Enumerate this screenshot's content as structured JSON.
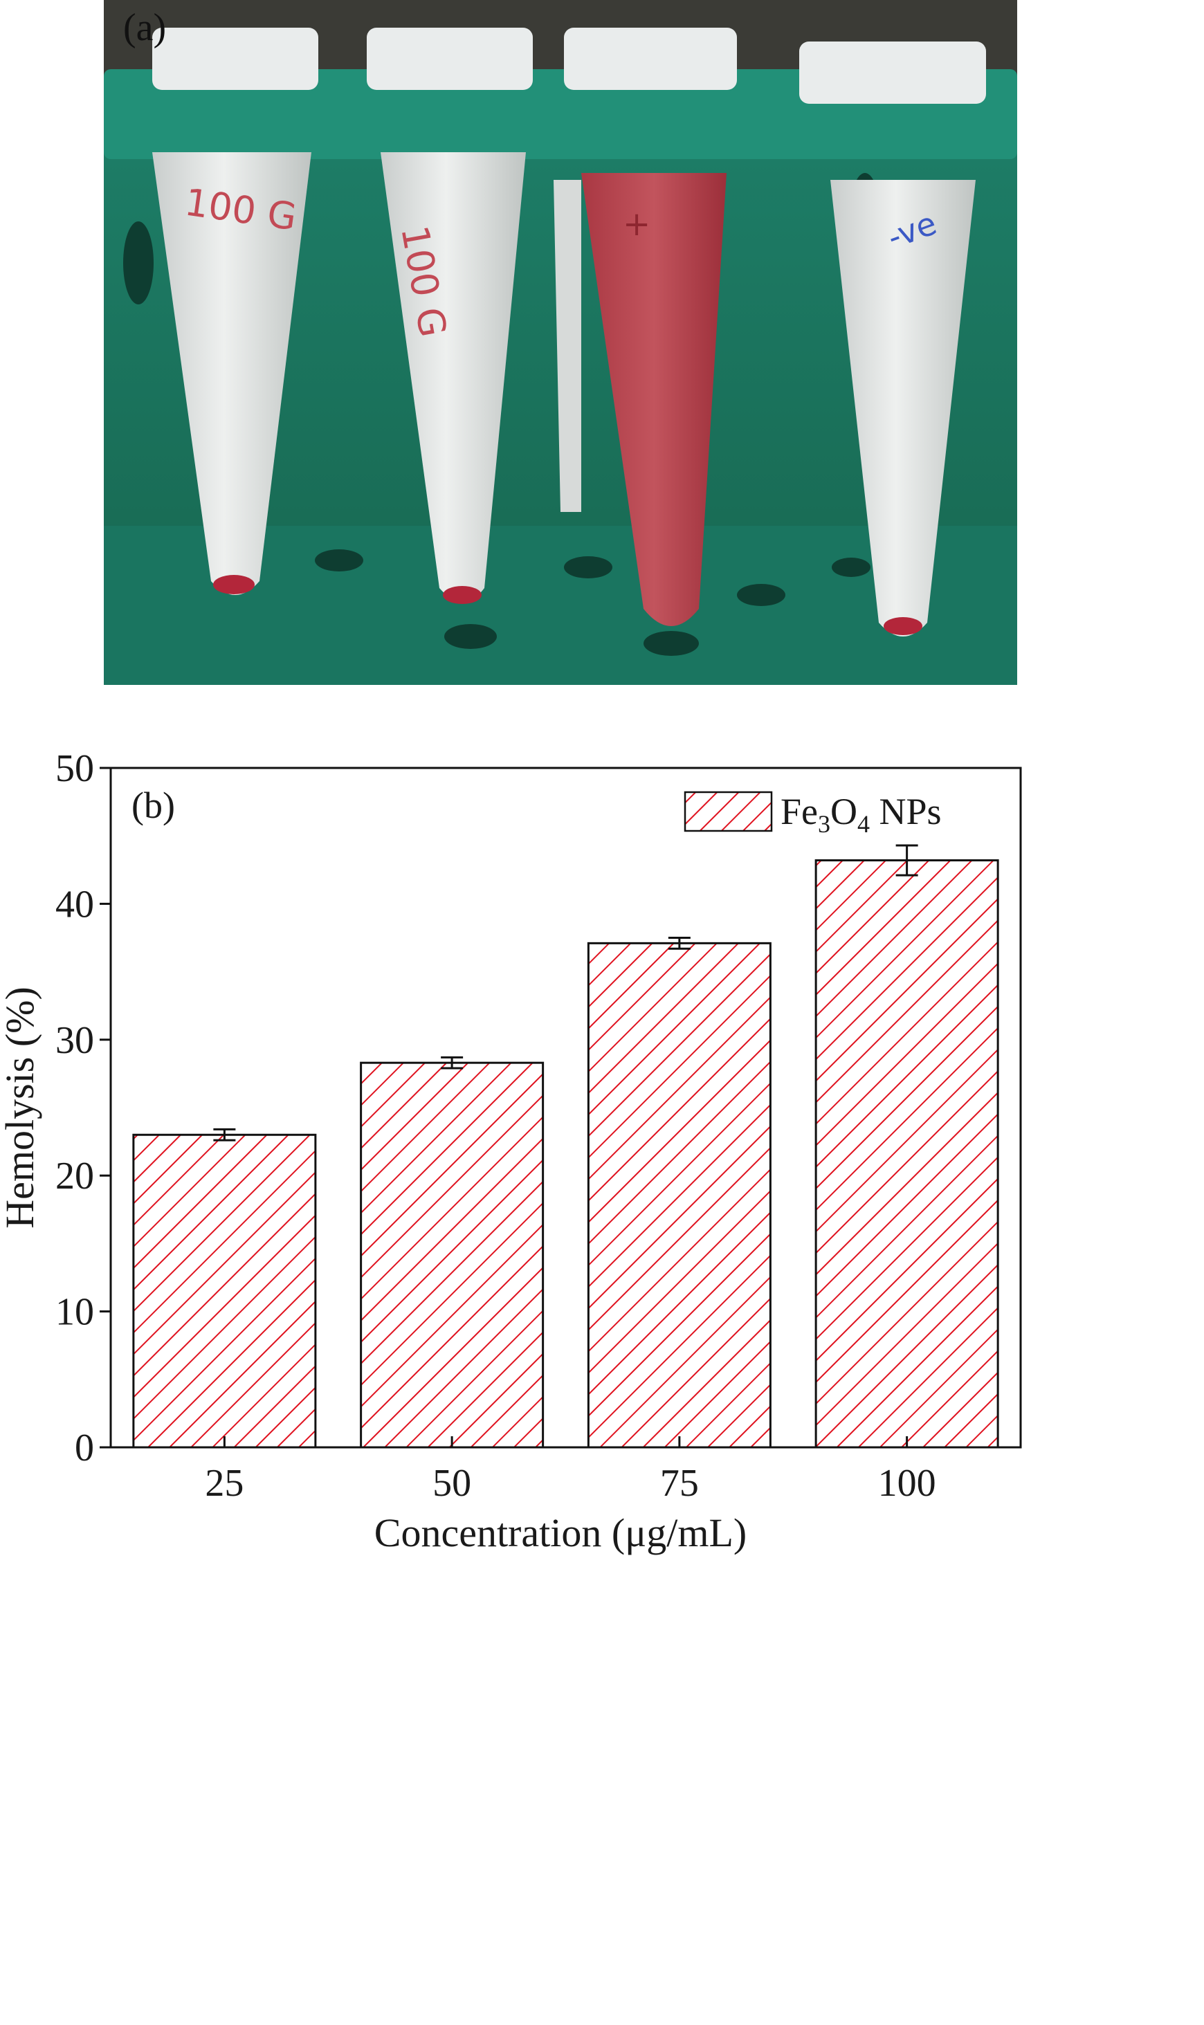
{
  "figure": {
    "panel_a_label": "(a)",
    "panel_b_label": "(b)"
  },
  "photo": {
    "tube_labels": [
      "100 G",
      "100 G",
      "+",
      "-ve"
    ],
    "rack_color": "#1f8c73",
    "tube_color": "#d9dcdb",
    "pellet_color": "#b3263a",
    "lysed_color": "#b8434f",
    "tube_states": [
      "pellet",
      "pellet",
      "lysed",
      "pellet"
    ]
  },
  "chart_data": {
    "type": "bar",
    "categories": [
      "25",
      "50",
      "75",
      "100"
    ],
    "series": [
      {
        "name": "Fe3O4 NPs",
        "values": [
          23.0,
          28.3,
          37.1,
          43.2
        ],
        "errors": [
          0.4,
          0.4,
          0.4,
          1.1
        ]
      }
    ],
    "legend_text": {
      "prefix": "Fe",
      "sub1": "3",
      "mid": "O",
      "sub2": "4",
      "suffix": " NPs"
    },
    "xlabel": "Concentration (μg/mL)",
    "ylabel": "Hemolysis (%)",
    "ylim": [
      0,
      50
    ],
    "yticks": [
      0,
      10,
      20,
      30,
      40,
      50
    ],
    "legend_position": "top-right",
    "bar_fill": "hatched",
    "hatch_color": "#e0121f",
    "grid": false
  }
}
